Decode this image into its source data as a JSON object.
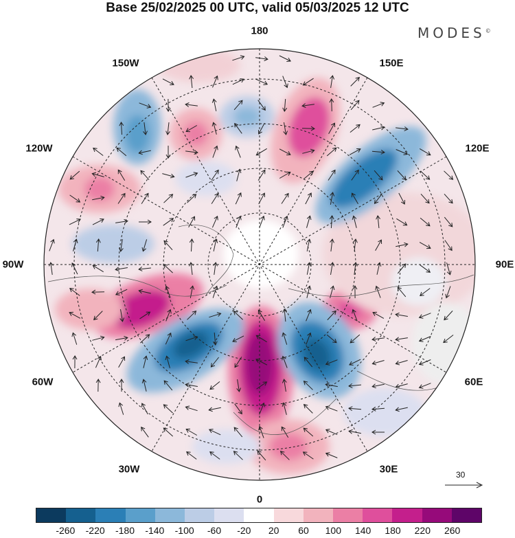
{
  "title": "Base 25/02/2025 00 UTC, valid 05/03/2025 12 UTC",
  "brand": {
    "name": "MODES",
    "mark": "©"
  },
  "longitude_labels": {
    "top": "180",
    "bottom": "0",
    "left": "90W",
    "right": "90E",
    "nw": "150W",
    "ne": "150E",
    "wnw": "120W",
    "ene": "120E",
    "wsw": "60W",
    "esw": "60E",
    "sw": "30W",
    "se": "30E"
  },
  "reference_vector": {
    "value": "30"
  },
  "colorbar": {
    "ticks": [
      "-260",
      "-220",
      "-180",
      "-140",
      "-100",
      "-60",
      "-20",
      "20",
      "60",
      "100",
      "140",
      "180",
      "220",
      "260"
    ],
    "colors": [
      "#0c3a5e",
      "#15608f",
      "#2b7fb6",
      "#5a9fcb",
      "#8cb8da",
      "#bccde6",
      "#dcdff0",
      "#ffffff",
      "#f8d9dc",
      "#f2b3bd",
      "#eb7fa5",
      "#df4f9c",
      "#c41f8c",
      "#960a7a",
      "#5e0568"
    ]
  }
}
